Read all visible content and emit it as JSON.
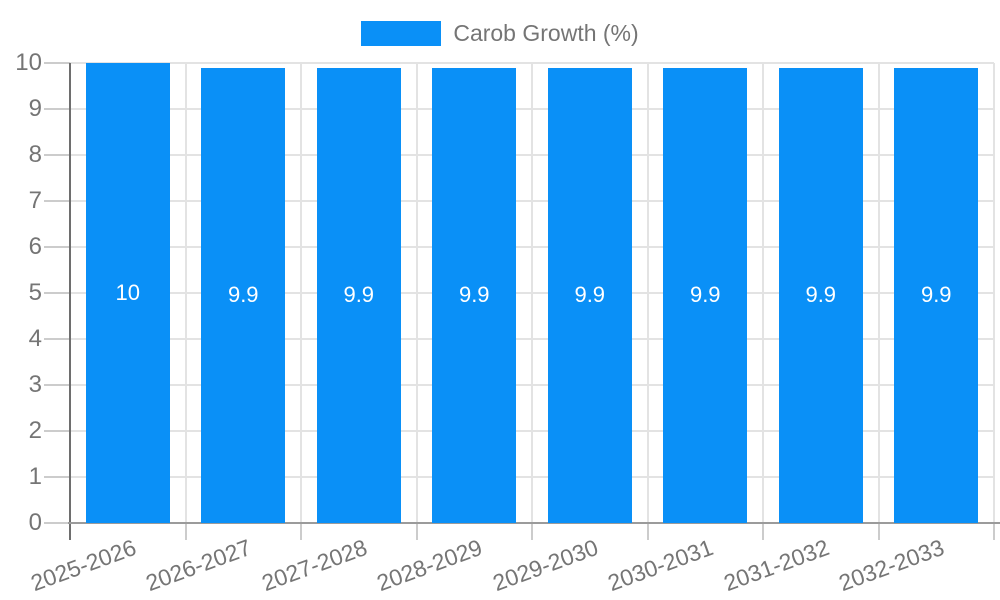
{
  "chart_data": {
    "type": "bar",
    "legend_label": "Carob Growth (%)",
    "legend_position": "top",
    "categories": [
      "2025-2026",
      "2026-2027",
      "2027-2028",
      "2028-2029",
      "2029-2030",
      "2030-2031",
      "2031-2032",
      "2032-2033"
    ],
    "values": [
      10,
      9.9,
      9.9,
      9.9,
      9.9,
      9.9,
      9.9,
      9.9
    ],
    "value_labels": [
      "10",
      "9.9",
      "9.9",
      "9.9",
      "9.9",
      "9.9",
      "9.9",
      "9.9"
    ],
    "ylim": [
      0,
      10
    ],
    "yticks": [
      0,
      1,
      2,
      3,
      4,
      5,
      6,
      7,
      8,
      9,
      10
    ],
    "grid": true,
    "xlabel": "",
    "ylabel": "",
    "colors": {
      "bar": "#0a90f7",
      "bar_label": "#ffffff",
      "axis_text": "#757575",
      "grid": "#e3e3e3",
      "tick": "#cccccc",
      "y_axis_line": "#6e6e6e",
      "x_axis_line": "#9b9b9b",
      "background": "#ffffff"
    }
  }
}
